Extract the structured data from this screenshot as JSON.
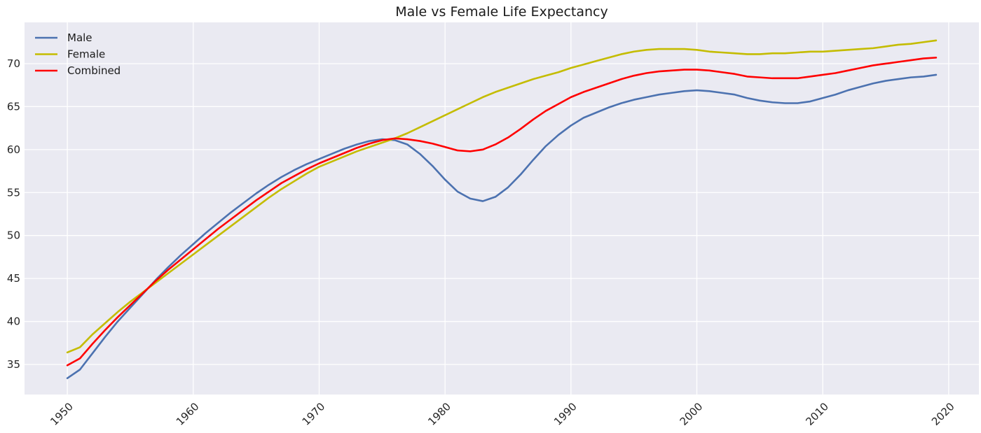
{
  "chart_data": {
    "type": "line",
    "title": "Male vs Female Life Expectancy",
    "xlabel": "",
    "ylabel": "",
    "xlim": [
      1946.6,
      2022.4
    ],
    "ylim": [
      31.5,
      74.8
    ],
    "xticks": [
      1950,
      1960,
      1970,
      1980,
      1990,
      2000,
      2010,
      2020
    ],
    "yticks": [
      35,
      40,
      45,
      50,
      55,
      60,
      65,
      70
    ],
    "grid": true,
    "legend_position": "top-left",
    "x": [
      1950,
      1951,
      1952,
      1953,
      1954,
      1955,
      1956,
      1957,
      1958,
      1959,
      1960,
      1961,
      1962,
      1963,
      1964,
      1965,
      1966,
      1967,
      1968,
      1969,
      1970,
      1971,
      1972,
      1973,
      1974,
      1975,
      1976,
      1977,
      1978,
      1979,
      1980,
      1981,
      1982,
      1983,
      1984,
      1985,
      1986,
      1987,
      1988,
      1989,
      1990,
      1991,
      1992,
      1993,
      1994,
      1995,
      1996,
      1997,
      1998,
      1999,
      2000,
      2001,
      2002,
      2003,
      2004,
      2005,
      2006,
      2007,
      2008,
      2009,
      2010,
      2011,
      2012,
      2013,
      2014,
      2015,
      2016,
      2017,
      2018,
      2019
    ],
    "series": [
      {
        "name": "Male",
        "color": "#4c72b0",
        "values": [
          33.4,
          34.4,
          36.3,
          38.2,
          40.0,
          41.6,
          43.2,
          44.8,
          46.3,
          47.7,
          49.0,
          50.3,
          51.5,
          52.7,
          53.8,
          54.9,
          55.9,
          56.8,
          57.6,
          58.3,
          58.9,
          59.5,
          60.1,
          60.6,
          61.0,
          61.2,
          61.1,
          60.6,
          59.5,
          58.1,
          56.5,
          55.1,
          54.3,
          54.0,
          54.5,
          55.6,
          57.1,
          58.8,
          60.4,
          61.7,
          62.8,
          63.7,
          64.3,
          64.9,
          65.4,
          65.8,
          66.1,
          66.4,
          66.6,
          66.8,
          66.9,
          66.8,
          66.6,
          66.4,
          66.0,
          65.7,
          65.5,
          65.4,
          65.4,
          65.6,
          66.0,
          66.4,
          66.9,
          67.3,
          67.7,
          68.0,
          68.2,
          68.4,
          68.5,
          68.7
        ]
      },
      {
        "name": "Female",
        "color": "#c4bc00",
        "values": [
          36.4,
          37.0,
          38.5,
          39.8,
          41.1,
          42.3,
          43.4,
          44.5,
          45.6,
          46.7,
          47.8,
          48.9,
          50.0,
          51.1,
          52.2,
          53.3,
          54.4,
          55.4,
          56.3,
          57.2,
          58.0,
          58.6,
          59.2,
          59.8,
          60.3,
          60.8,
          61.3,
          61.9,
          62.6,
          63.3,
          64.0,
          64.7,
          65.4,
          66.1,
          66.7,
          67.2,
          67.7,
          68.2,
          68.6,
          69.0,
          69.5,
          69.9,
          70.3,
          70.7,
          71.1,
          71.4,
          71.6,
          71.7,
          71.7,
          71.7,
          71.6,
          71.4,
          71.3,
          71.2,
          71.1,
          71.1,
          71.2,
          71.2,
          71.3,
          71.4,
          71.4,
          71.5,
          71.6,
          71.7,
          71.8,
          72.0,
          72.2,
          72.3,
          72.5,
          72.7
        ]
      },
      {
        "name": "Combined",
        "color": "#ff0000",
        "values": [
          34.9,
          35.7,
          37.4,
          39.0,
          40.5,
          41.9,
          43.3,
          44.7,
          46.0,
          47.2,
          48.4,
          49.6,
          50.8,
          51.9,
          53.0,
          54.1,
          55.1,
          56.1,
          56.9,
          57.7,
          58.4,
          59.0,
          59.6,
          60.2,
          60.7,
          61.1,
          61.3,
          61.2,
          61.0,
          60.7,
          60.3,
          59.9,
          59.8,
          60.0,
          60.6,
          61.4,
          62.4,
          63.5,
          64.5,
          65.3,
          66.1,
          66.7,
          67.2,
          67.7,
          68.2,
          68.6,
          68.9,
          69.1,
          69.2,
          69.3,
          69.3,
          69.2,
          69.0,
          68.8,
          68.5,
          68.4,
          68.3,
          68.3,
          68.3,
          68.5,
          68.7,
          68.9,
          69.2,
          69.5,
          69.8,
          70.0,
          70.2,
          70.4,
          70.6,
          70.7
        ]
      }
    ]
  }
}
